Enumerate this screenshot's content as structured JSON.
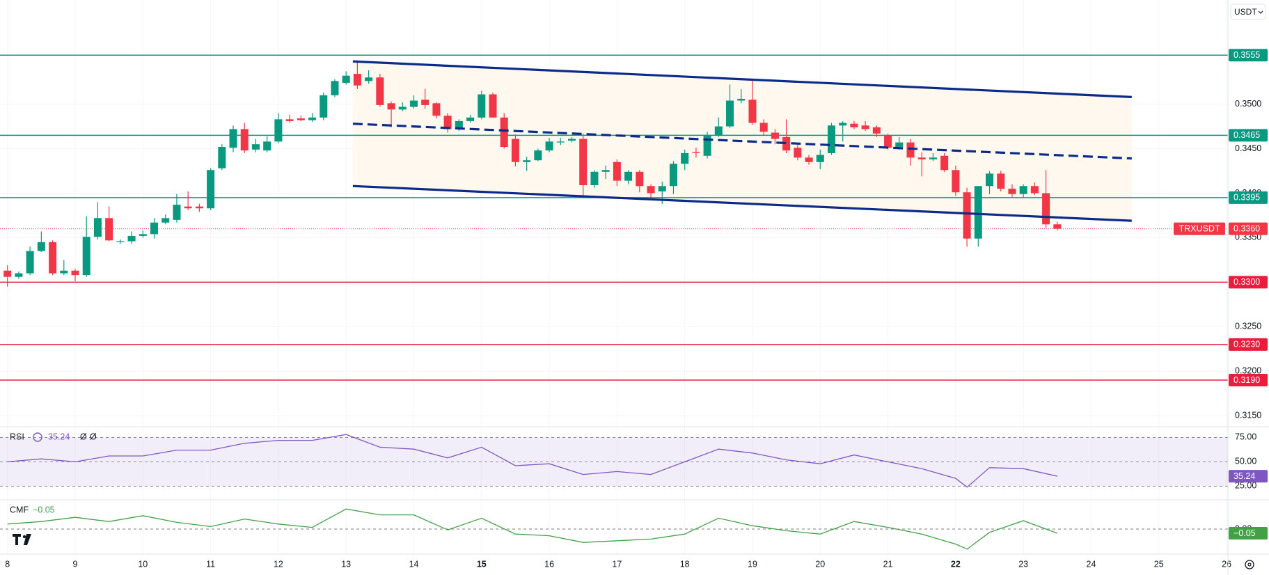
{
  "chart_data": [
    {
      "type": "candlestick",
      "symbol": "TRXUSDT",
      "currency": "USDT",
      "up_color": "#089981",
      "down_color": "#f23645",
      "x": [
        8,
        8.1667,
        8.3333,
        8.5,
        8.6667,
        8.8333,
        9,
        9.1667,
        9.3333,
        9.5,
        9.6667,
        9.8333,
        10,
        10.1667,
        10.3333,
        10.5,
        10.6667,
        10.8333,
        11,
        11.1667,
        11.3333,
        11.5,
        11.6667,
        11.8333,
        12,
        12.1667,
        12.3333,
        12.5,
        12.6667,
        12.8333,
        13,
        13.1667,
        13.3333,
        13.5,
        13.6667,
        13.8333,
        14,
        14.1667,
        14.3333,
        14.5,
        14.6667,
        14.8333,
        15,
        15.1667,
        15.3333,
        15.5,
        15.6667,
        15.8333,
        16,
        16.1667,
        16.3333,
        16.5,
        16.6667,
        16.8333,
        17,
        17.1667,
        17.3333,
        17.5,
        17.6667,
        17.8333,
        18,
        18.1667,
        18.3333,
        18.5,
        18.6667,
        18.8333,
        19,
        19.1667,
        19.3333,
        19.5,
        19.6667,
        19.8333,
        20,
        20.1667,
        20.3333,
        20.5,
        20.6667,
        20.8333,
        21,
        21.1667,
        21.3333,
        21.5,
        21.6667,
        21.8333,
        22,
        22.1667,
        22.3333,
        22.5,
        22.6667,
        22.8333,
        23,
        23.1667,
        23.3333,
        23.5
      ],
      "open": [
        0.3313,
        0.3306,
        0.331,
        0.3335,
        0.3345,
        0.331,
        0.3313,
        0.3308,
        0.3351,
        0.3372,
        0.3345,
        0.3346,
        0.3352,
        0.3354,
        0.3367,
        0.337,
        0.3385,
        0.3385,
        0.3383,
        0.3428,
        0.3451,
        0.3472,
        0.3449,
        0.3448,
        0.3458,
        0.3483,
        0.3484,
        0.3482,
        0.3485,
        0.351,
        0.3524,
        0.3534,
        0.3526,
        0.353,
        0.3501,
        0.3494,
        0.3497,
        0.3505,
        0.3501,
        0.3487,
        0.3472,
        0.3481,
        0.3485,
        0.3511,
        0.3485,
        0.3461,
        0.3435,
        0.3437,
        0.3448,
        0.3457,
        0.3459,
        0.3461,
        0.3409,
        0.3424,
        0.3435,
        0.3414,
        0.3424,
        0.3408,
        0.3402,
        0.3408,
        0.3433,
        0.3446,
        0.3442,
        0.3465,
        0.3475,
        0.3504,
        0.3505,
        0.3479,
        0.3468,
        0.3463,
        0.3451,
        0.344,
        0.3435,
        0.3445,
        0.3476,
        0.3478,
        0.3476,
        0.3474,
        0.3465,
        0.3452,
        0.3457,
        0.344,
        0.3438,
        0.3442,
        0.3426,
        0.3401,
        0.3349,
        0.3408,
        0.3422,
        0.3405,
        0.3399,
        0.3408,
        0.34,
        0.3365
      ],
      "high": [
        0.3319,
        0.3312,
        0.334,
        0.3357,
        0.3347,
        0.3325,
        0.3315,
        0.3374,
        0.339,
        0.3385,
        0.3348,
        0.3357,
        0.3358,
        0.3372,
        0.3376,
        0.3399,
        0.3402,
        0.3388,
        0.3428,
        0.3455,
        0.3476,
        0.3479,
        0.3461,
        0.3464,
        0.349,
        0.3488,
        0.3487,
        0.349,
        0.3513,
        0.3528,
        0.3537,
        0.3549,
        0.3538,
        0.3534,
        0.3503,
        0.3502,
        0.351,
        0.3517,
        0.3502,
        0.349,
        0.3483,
        0.3488,
        0.3515,
        0.3513,
        0.349,
        0.3466,
        0.3441,
        0.345,
        0.3462,
        0.3462,
        0.3463,
        0.3467,
        0.3426,
        0.3431,
        0.3438,
        0.3426,
        0.3426,
        0.341,
        0.3413,
        0.3436,
        0.3449,
        0.3451,
        0.3469,
        0.3485,
        0.3522,
        0.3517,
        0.3527,
        0.3483,
        0.3472,
        0.3483,
        0.3454,
        0.3443,
        0.3449,
        0.3479,
        0.3481,
        0.3481,
        0.3481,
        0.3476,
        0.3467,
        0.3463,
        0.3461,
        0.3446,
        0.3445,
        0.3445,
        0.3431,
        0.3406,
        0.3408,
        0.3425,
        0.3425,
        0.341,
        0.341,
        0.3412,
        0.3426,
        0.3368
      ],
      "low": [
        0.3295,
        0.3304,
        0.3308,
        0.3334,
        0.3308,
        0.3308,
        0.3301,
        0.3306,
        0.3348,
        0.3346,
        0.3343,
        0.3343,
        0.335,
        0.3349,
        0.3365,
        0.3367,
        0.3381,
        0.3379,
        0.3381,
        0.3426,
        0.3446,
        0.3445,
        0.3446,
        0.3446,
        0.3456,
        0.3479,
        0.3481,
        0.348,
        0.3482,
        0.3508,
        0.3522,
        0.3517,
        0.3523,
        0.3497,
        0.3474,
        0.3492,
        0.3495,
        0.3495,
        0.3484,
        0.3468,
        0.347,
        0.3479,
        0.3483,
        0.3485,
        0.345,
        0.343,
        0.3425,
        0.3436,
        0.3446,
        0.3454,
        0.3457,
        0.3397,
        0.3406,
        0.3416,
        0.3408,
        0.341,
        0.3401,
        0.3395,
        0.3388,
        0.3399,
        0.3426,
        0.344,
        0.3439,
        0.3463,
        0.3473,
        0.3501,
        0.3477,
        0.3465,
        0.3455,
        0.3445,
        0.3437,
        0.3432,
        0.3427,
        0.3443,
        0.3458,
        0.3472,
        0.347,
        0.3463,
        0.3449,
        0.3449,
        0.3431,
        0.3419,
        0.3436,
        0.3424,
        0.3397,
        0.334,
        0.334,
        0.3399,
        0.3402,
        0.3396,
        0.3395,
        0.3398,
        0.3361,
        0.3358
      ],
      "close": [
        0.3306,
        0.331,
        0.3335,
        0.3345,
        0.331,
        0.3313,
        0.3308,
        0.3351,
        0.3372,
        0.3347,
        0.3346,
        0.3352,
        0.3354,
        0.3367,
        0.3372,
        0.3387,
        0.3383,
        0.3383,
        0.3426,
        0.3452,
        0.3472,
        0.3448,
        0.3455,
        0.3458,
        0.3483,
        0.3481,
        0.3482,
        0.3485,
        0.351,
        0.3526,
        0.3532,
        0.3521,
        0.353,
        0.3499,
        0.3494,
        0.3497,
        0.3504,
        0.3499,
        0.3487,
        0.3472,
        0.3481,
        0.3485,
        0.3511,
        0.3485,
        0.3452,
        0.3435,
        0.3437,
        0.3448,
        0.3458,
        0.3458,
        0.3461,
        0.3409,
        0.3424,
        0.3426,
        0.3414,
        0.3424,
        0.3408,
        0.34,
        0.3408,
        0.3433,
        0.3445,
        0.3445,
        0.3465,
        0.3475,
        0.3504,
        0.3506,
        0.3479,
        0.3469,
        0.3461,
        0.3448,
        0.344,
        0.3435,
        0.3443,
        0.3476,
        0.3479,
        0.3474,
        0.3472,
        0.3467,
        0.3451,
        0.3457,
        0.344,
        0.3438,
        0.344,
        0.3426,
        0.3401,
        0.3349,
        0.3408,
        0.3422,
        0.3405,
        0.3399,
        0.3408,
        0.34,
        0.3365,
        0.336
      ],
      "xlim": [
        7.89,
        26.02
      ],
      "xticks": [
        8,
        9,
        10,
        11,
        12,
        13,
        14,
        15,
        16,
        17,
        18,
        19,
        20,
        21,
        22,
        23,
        24,
        25,
        26
      ],
      "bold_xticks": [
        15,
        22
      ],
      "ylim": [
        0.314,
        0.3617
      ],
      "yticks": [
        {
          "value": 0.315,
          "label": "0.3150"
        },
        {
          "value": 0.32,
          "label": "0.3200"
        },
        {
          "value": 0.325,
          "label": "0.3250"
        },
        {
          "value": 0.33,
          "label": "0.3300"
        },
        {
          "value": 0.335,
          "label": "0.3350"
        },
        {
          "value": 0.34,
          "label": "0.3400"
        },
        {
          "value": 0.345,
          "label": "0.3450"
        },
        {
          "value": 0.35,
          "label": "0.3500"
        }
      ],
      "grid": true,
      "levels": [
        {
          "value": 0.3555,
          "label": "0.3555",
          "color": "#089981"
        },
        {
          "value": 0.3465,
          "label": "0.3465",
          "color": "#089981"
        },
        {
          "value": 0.3395,
          "label": "0.3395",
          "color": "#089981"
        },
        {
          "value": 0.33,
          "label": "0.3300",
          "color": "#e91e3c"
        },
        {
          "value": 0.323,
          "label": "0.3230",
          "color": "#e91e3c"
        },
        {
          "value": 0.319,
          "label": "0.3190",
          "color": "#e91e3c"
        }
      ],
      "last_price": {
        "value": 0.336,
        "label": "0.3360",
        "color": "#f23645"
      },
      "channel": {
        "x": [
          13.1,
          24.6
        ],
        "upper": [
          0.3548,
          0.3508
        ],
        "middle": [
          0.3478,
          0.3439
        ],
        "lower": [
          0.3408,
          0.3369
        ],
        "color": "#0c2a8a",
        "fill": "#fff8ee"
      }
    },
    {
      "type": "line",
      "name": "RSI",
      "params": [
        "Ø",
        "Ø"
      ],
      "color": "#7e57c2",
      "x": [
        8,
        8.5,
        9,
        9.5,
        10,
        10.5,
        11,
        11.5,
        12,
        12.5,
        13,
        13.5,
        14,
        14.5,
        15,
        15.5,
        16,
        16.5,
        17,
        17.5,
        18,
        18.5,
        19,
        19.5,
        20,
        20.5,
        21,
        21.5,
        22,
        22.17,
        22.5,
        23,
        23.5
      ],
      "values": [
        50,
        53,
        50,
        56,
        56,
        62,
        62,
        69,
        72,
        72,
        78,
        65,
        63,
        54,
        65,
        46,
        48,
        37,
        40,
        37,
        50,
        63,
        59,
        52,
        48,
        57,
        50,
        43,
        33,
        24,
        44,
        43,
        35.24
      ],
      "ylim": [
        11,
        86
      ],
      "yticks": [
        {
          "value": 75,
          "label": "75.00"
        },
        {
          "value": 50,
          "label": "50.00"
        },
        {
          "value": 25,
          "label": "25.00"
        }
      ],
      "band": [
        25,
        75
      ]
    },
    {
      "type": "line",
      "name": "CMF",
      "color": "#43a047",
      "x": [
        8,
        8.5,
        9,
        9.5,
        10,
        10.5,
        11,
        11.5,
        12,
        12.5,
        13,
        13.5,
        14,
        14.5,
        15,
        15.5,
        16,
        16.5,
        17,
        17.5,
        18,
        18.5,
        19,
        19.5,
        20,
        20.5,
        21,
        21.5,
        22,
        22.17,
        22.5,
        23,
        23.5
      ],
      "values": [
        0.06,
        0.09,
        0.14,
        0.09,
        0.16,
        0.08,
        0.03,
        0.12,
        0.06,
        0.02,
        0.24,
        0.17,
        0.17,
        -0.01,
        0.13,
        -0.06,
        -0.08,
        -0.16,
        -0.14,
        -0.12,
        -0.06,
        0.13,
        0.04,
        -0.02,
        -0.06,
        0.09,
        0.02,
        -0.06,
        -0.18,
        -0.24,
        -0.04,
        0.1,
        -0.05
      ],
      "last_value_label": "−0.05",
      "ylim": [
        -0.3,
        0.35
      ],
      "yticks": [
        {
          "value": 0,
          "label": "0.00"
        }
      ]
    }
  ]
}
